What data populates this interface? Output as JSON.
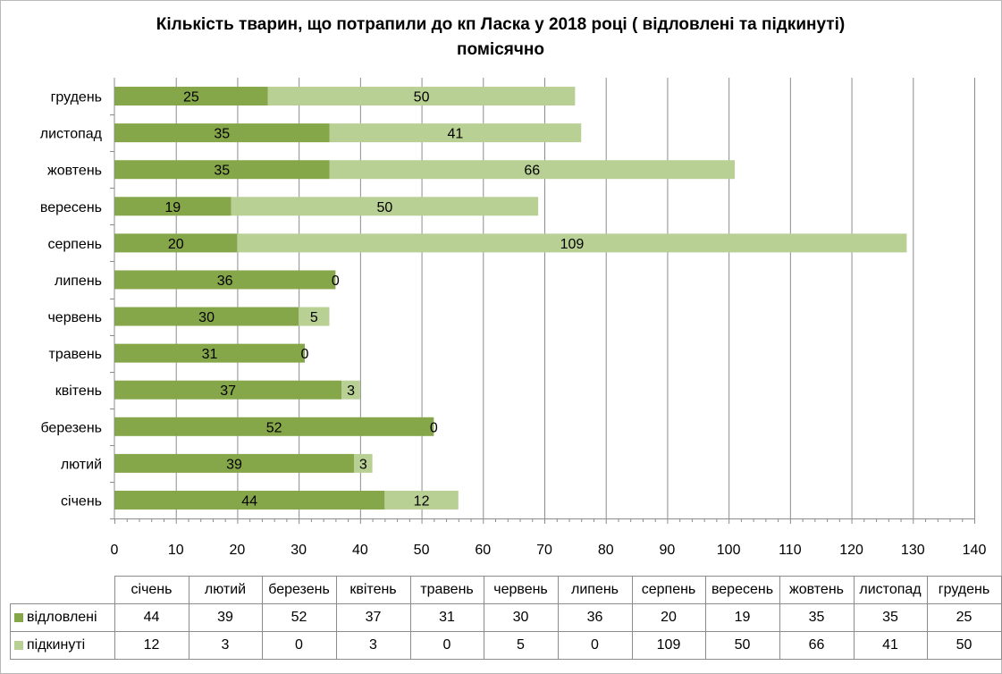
{
  "chart_data": {
    "type": "bar",
    "orientation": "horizontal",
    "stacked": true,
    "title_line1": "Кількість тварин, що потрапили до кп Ласка у 2018 році ( відловлені та підкинуті)",
    "title_line2": "помісячно",
    "categories": [
      "січень",
      "лютий",
      "березень",
      "квітень",
      "травень",
      "червень",
      "липень",
      "серпень",
      "вересень",
      "жовтень",
      "листопад",
      "грудень"
    ],
    "series": [
      {
        "name": "відловлені",
        "color": "#86a64a",
        "values": [
          44,
          39,
          52,
          37,
          31,
          30,
          36,
          20,
          19,
          35,
          35,
          25
        ]
      },
      {
        "name": "підкинуті",
        "color": "#b9d095",
        "values": [
          12,
          3,
          0,
          3,
          0,
          5,
          0,
          109,
          50,
          66,
          41,
          50
        ]
      }
    ],
    "xlim": [
      0,
      140
    ],
    "xticks": [
      0,
      10,
      20,
      30,
      40,
      50,
      60,
      70,
      80,
      90,
      100,
      110,
      120,
      130,
      140
    ],
    "grid": "vertical",
    "data_labels": true,
    "legend": "data-table"
  }
}
